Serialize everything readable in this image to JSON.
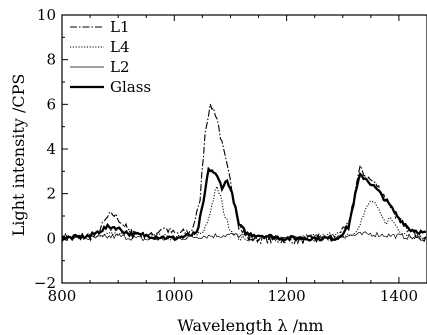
{
  "chart_data": {
    "type": "line",
    "xlabel": "Wavelength λ /nm",
    "ylabel": "Light intensity /CPS",
    "xlim": [
      800,
      1450
    ],
    "ylim": [
      -2,
      10
    ],
    "xticks": [
      800,
      1000,
      1200,
      1400
    ],
    "yticks": [
      -2,
      0,
      2,
      4,
      6,
      8,
      10
    ],
    "grid": false,
    "legend_position": "top-left",
    "series": [
      {
        "name": "L1",
        "style": "dash-dot",
        "points": [
          [
            800,
            0.0
          ],
          [
            860,
            0.1
          ],
          [
            880,
            0.9
          ],
          [
            890,
            1.1
          ],
          [
            900,
            0.9
          ],
          [
            920,
            0.3
          ],
          [
            960,
            0.1
          ],
          [
            980,
            0.5
          ],
          [
            1000,
            0.2
          ],
          [
            1030,
            0.3
          ],
          [
            1045,
            1.5
          ],
          [
            1055,
            4.8
          ],
          [
            1062,
            5.8
          ],
          [
            1068,
            5.9
          ],
          [
            1075,
            5.5
          ],
          [
            1085,
            4.2
          ],
          [
            1100,
            2.5
          ],
          [
            1115,
            0.6
          ],
          [
            1130,
            0.0
          ],
          [
            1200,
            -0.1
          ],
          [
            1290,
            0.0
          ],
          [
            1310,
            0.6
          ],
          [
            1325,
            2.5
          ],
          [
            1332,
            3.2
          ],
          [
            1340,
            2.8
          ],
          [
            1360,
            2.4
          ],
          [
            1380,
            1.7
          ],
          [
            1400,
            0.8
          ],
          [
            1420,
            0.3
          ],
          [
            1450,
            0.0
          ]
        ]
      },
      {
        "name": "L4",
        "style": "dotted",
        "points": [
          [
            800,
            0.0
          ],
          [
            880,
            0.2
          ],
          [
            900,
            0.3
          ],
          [
            1000,
            0.0
          ],
          [
            1050,
            0.2
          ],
          [
            1060,
            0.8
          ],
          [
            1068,
            1.6
          ],
          [
            1075,
            2.3
          ],
          [
            1082,
            1.9
          ],
          [
            1090,
            1.0
          ],
          [
            1100,
            0.4
          ],
          [
            1115,
            0.0
          ],
          [
            1200,
            0.0
          ],
          [
            1320,
            0.2
          ],
          [
            1335,
            0.9
          ],
          [
            1345,
            1.5
          ],
          [
            1352,
            1.7
          ],
          [
            1360,
            1.4
          ],
          [
            1375,
            0.7
          ],
          [
            1385,
            0.9
          ],
          [
            1400,
            0.4
          ],
          [
            1420,
            0.1
          ],
          [
            1450,
            0.0
          ]
        ]
      },
      {
        "name": "L2",
        "style": "solid-thin",
        "points": [
          [
            800,
            0.1
          ],
          [
            850,
            0.0
          ],
          [
            900,
            0.1
          ],
          [
            950,
            -0.05
          ],
          [
            1000,
            0.0
          ],
          [
            1050,
            0.1
          ],
          [
            1100,
            0.15
          ],
          [
            1150,
            0.05
          ],
          [
            1200,
            0.0
          ],
          [
            1250,
            0.05
          ],
          [
            1300,
            0.1
          ],
          [
            1350,
            0.2
          ],
          [
            1400,
            0.1
          ],
          [
            1450,
            0.0
          ]
        ]
      },
      {
        "name": "Glass",
        "style": "solid-thick",
        "points": [
          [
            800,
            0.0
          ],
          [
            850,
            0.1
          ],
          [
            880,
            0.5
          ],
          [
            895,
            0.5
          ],
          [
            920,
            0.2
          ],
          [
            1000,
            0.0
          ],
          [
            1040,
            0.2
          ],
          [
            1052,
            1.6
          ],
          [
            1060,
            3.0
          ],
          [
            1065,
            3.1
          ],
          [
            1075,
            2.8
          ],
          [
            1085,
            2.3
          ],
          [
            1095,
            2.6
          ],
          [
            1105,
            1.8
          ],
          [
            1115,
            0.6
          ],
          [
            1130,
            0.2
          ],
          [
            1200,
            0.0
          ],
          [
            1290,
            0.0
          ],
          [
            1310,
            0.5
          ],
          [
            1322,
            1.9
          ],
          [
            1330,
            2.8
          ],
          [
            1340,
            2.7
          ],
          [
            1360,
            2.2
          ],
          [
            1380,
            1.6
          ],
          [
            1400,
            0.9
          ],
          [
            1420,
            0.4
          ],
          [
            1450,
            0.2
          ]
        ]
      }
    ]
  }
}
